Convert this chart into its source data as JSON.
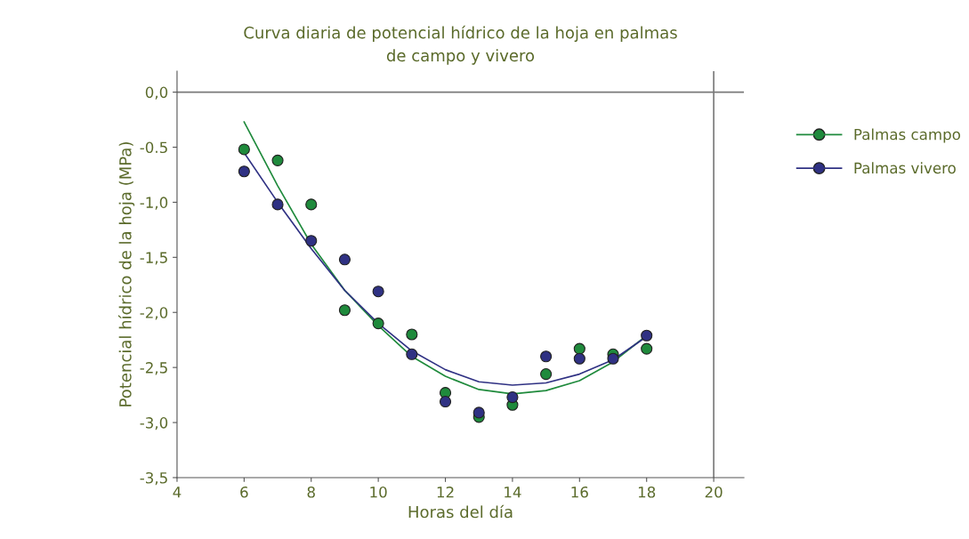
{
  "chart_data": {
    "type": "scatter",
    "title": "Curva diaria de potencial hídrico de la hoja en palmas\nde campo y vivero",
    "xlabel": "Horas del día",
    "ylabel": "Potencial hídrico de la hoja (MPa)",
    "x": [
      6,
      7,
      8,
      9,
      10,
      11,
      12,
      13,
      14,
      15,
      16,
      17,
      18
    ],
    "series": [
      {
        "name": "Palmas campo",
        "color": "#1f8a3c",
        "marker": "circle",
        "values": [
          -0.52,
          -0.62,
          -1.02,
          -1.98,
          -2.1,
          -2.2,
          -2.73,
          -2.95,
          -2.84,
          -2.56,
          -2.33,
          -2.38,
          -2.33
        ]
      },
      {
        "name": "Palmas vivero",
        "color": "#2f3183",
        "marker": "circle",
        "values": [
          -0.72,
          -1.02,
          -1.35,
          -1.52,
          -1.81,
          -2.38,
          -2.81,
          -2.91,
          -2.77,
          -2.4,
          -2.42,
          -2.42,
          -2.21
        ]
      },
      {
        "type": "line",
        "color": "#1f8a3c",
        "marker": "none",
        "values": [
          -0.27,
          -0.85,
          -1.38,
          -1.8,
          -2.12,
          -2.4,
          -2.58,
          -2.7,
          -2.74,
          -2.71,
          -2.62,
          -2.45,
          -2.21
        ]
      },
      {
        "type": "line",
        "color": "#2f3183",
        "marker": "none",
        "values": [
          -0.55,
          -1.0,
          -1.42,
          -1.8,
          -2.1,
          -2.35,
          -2.52,
          -2.63,
          -2.66,
          -2.64,
          -2.56,
          -2.43,
          -2.22
        ]
      }
    ],
    "xlim": [
      4,
      20.9
    ],
    "ylim": [
      -3.5,
      0.19
    ],
    "xticks": [
      4,
      6,
      8,
      10,
      12,
      14,
      16,
      18,
      20
    ],
    "yticks": [
      {
        "value": -3.5,
        "label": "-3,5"
      },
      {
        "value": -3.0,
        "label": "-3,0"
      },
      {
        "value": -2.5,
        "label": "-2,5"
      },
      {
        "value": -2.0,
        "label": "-2,0"
      },
      {
        "value": -1.5,
        "label": "-1,5"
      },
      {
        "value": -1.0,
        "label": "-1,0"
      },
      {
        "value": -0.5,
        "label": "-0.5"
      },
      {
        "value": 0,
        "label": "0,0"
      }
    ],
    "ref_lines": [
      {
        "axis": "y",
        "value": 0,
        "color": "#7a7a7a"
      },
      {
        "axis": "x",
        "value": 20,
        "color": "#7a7a7a"
      }
    ],
    "grid": false,
    "legend": "right"
  }
}
